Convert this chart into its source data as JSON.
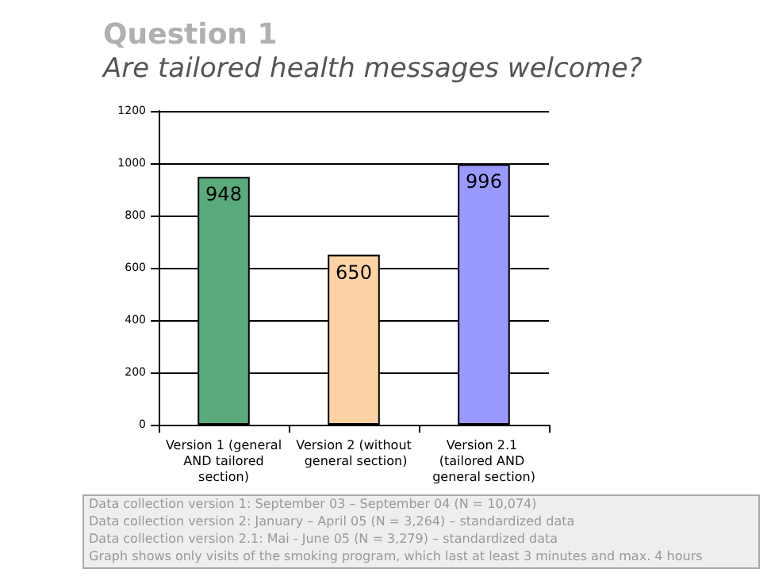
{
  "chart_data": {
    "type": "bar",
    "title": "Question 1",
    "subtitle": "Are tailored health messages welcome?",
    "categories": [
      "Version 1 (general AND tailored section)",
      "Version 2 (without general section)",
      "Version 2.1 (tailored AND general section)"
    ],
    "values": [
      948,
      650,
      996
    ],
    "colors": [
      "#5aaa7c",
      "#fdd3a6",
      "#9999ff"
    ],
    "ylim": [
      0,
      1200
    ],
    "yticks": [
      0,
      200,
      400,
      600,
      800,
      1000,
      1200
    ],
    "grid": "y",
    "data_labels": true,
    "annotations": [
      "Data collection version 1: September 03 – September 04 (N = 10,074)",
      "Data collection version 2: January – April 05 (N = 3,264) – standardized data",
      "Data collection version 2.1: Mai - June 05 (N = 3,279) – standardized data",
      "Graph shows only visits of the smoking program, which last at least 3 minutes and max. 4 hours"
    ]
  }
}
